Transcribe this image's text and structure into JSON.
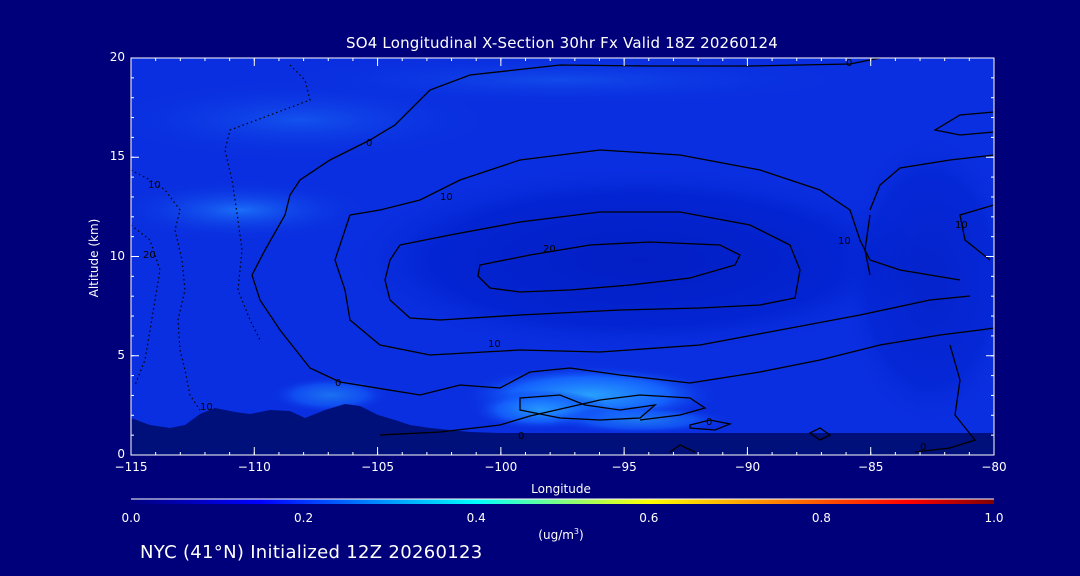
{
  "chart_data": {
    "type": "heatmap",
    "title": "SO4 Longitudinal X-Section 30hr  Fx Valid 18Z 20260124",
    "xlabel": "Longitude",
    "ylabel": "Altitude (km)",
    "xlim": [
      -115,
      -80
    ],
    "ylim": [
      0,
      20
    ],
    "x_ticks": [
      "−115",
      "−110",
      "−105",
      "−100",
      "−95",
      "−90",
      "−85",
      "−80"
    ],
    "y_ticks": [
      "0",
      "5",
      "10",
      "15",
      "20"
    ],
    "colorbar": {
      "range": [
        0.0,
        1.0
      ],
      "ticks": [
        "0.0",
        "0.2",
        "0.4",
        "0.6",
        "0.8",
        "1.0"
      ],
      "units_label": "(ug/m",
      "units_sup": "3",
      "units_close": ")",
      "stops": [
        "#000080",
        "#0000ff",
        "#00ffff",
        "#ffff00",
        "#ff8000",
        "#ff0000",
        "#800000"
      ]
    },
    "contour_labels": [
      "0",
      "10",
      "20",
      "10",
      "0",
      "10",
      "0",
      "0",
      "10",
      "20",
      "10",
      "10",
      "0",
      "0"
    ],
    "background_color": "#0a2fe0",
    "terrain_color": "#00107a"
  },
  "footer": "NYC (41°N) Initialized 12Z 20260123"
}
